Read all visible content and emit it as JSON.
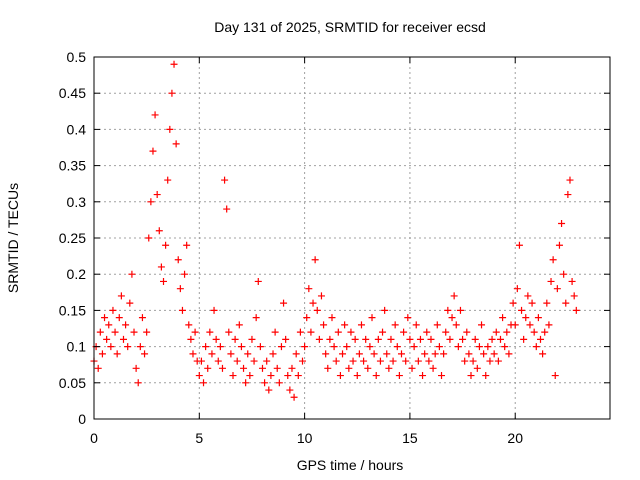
{
  "chart_data": {
    "type": "scatter",
    "title": "Day 131 of 2025, SRMTID for receiver ecsd",
    "xlabel": "GPS time / hours",
    "ylabel": "SRMTID / TECUs",
    "xlim": [
      0,
      24.5
    ],
    "ylim": [
      0,
      0.5
    ],
    "x_ticks": [
      0,
      5,
      10,
      15,
      20
    ],
    "x_tick_labels": [
      "0",
      "5",
      "10",
      "15",
      "20"
    ],
    "y_ticks": [
      0,
      0.05,
      0.1,
      0.15,
      0.2,
      0.25,
      0.3,
      0.35,
      0.4,
      0.45,
      0.5
    ],
    "y_tick_labels": [
      "0",
      "0.05",
      "0.1",
      "0.15",
      "0.2",
      "0.25",
      "0.3",
      "0.35",
      "0.4",
      "0.45",
      "0.5"
    ],
    "grid": true,
    "marker": "+",
    "color": "#ff0000",
    "series": [
      {
        "name": "SRMTID",
        "points": [
          [
            0.0,
            0.08
          ],
          [
            0.1,
            0.1
          ],
          [
            0.2,
            0.07
          ],
          [
            0.3,
            0.12
          ],
          [
            0.4,
            0.09
          ],
          [
            0.5,
            0.14
          ],
          [
            0.6,
            0.11
          ],
          [
            0.7,
            0.13
          ],
          [
            0.8,
            0.1
          ],
          [
            0.9,
            0.15
          ],
          [
            1.0,
            0.12
          ],
          [
            1.1,
            0.09
          ],
          [
            1.2,
            0.14
          ],
          [
            1.3,
            0.17
          ],
          [
            1.4,
            0.11
          ],
          [
            1.5,
            0.13
          ],
          [
            1.6,
            0.1
          ],
          [
            1.7,
            0.16
          ],
          [
            1.8,
            0.2
          ],
          [
            1.9,
            0.12
          ],
          [
            2.0,
            0.07
          ],
          [
            2.1,
            0.05
          ],
          [
            2.2,
            0.1
          ],
          [
            2.3,
            0.14
          ],
          [
            2.4,
            0.09
          ],
          [
            2.5,
            0.12
          ],
          [
            2.6,
            0.25
          ],
          [
            2.7,
            0.3
          ],
          [
            2.8,
            0.37
          ],
          [
            2.9,
            0.42
          ],
          [
            3.0,
            0.31
          ],
          [
            3.1,
            0.26
          ],
          [
            3.2,
            0.21
          ],
          [
            3.3,
            0.19
          ],
          [
            3.4,
            0.24
          ],
          [
            3.5,
            0.33
          ],
          [
            3.6,
            0.4
          ],
          [
            3.7,
            0.45
          ],
          [
            3.8,
            0.49
          ],
          [
            3.9,
            0.38
          ],
          [
            4.0,
            0.22
          ],
          [
            4.1,
            0.18
          ],
          [
            4.2,
            0.15
          ],
          [
            4.3,
            0.2
          ],
          [
            4.4,
            0.24
          ],
          [
            4.5,
            0.13
          ],
          [
            4.6,
            0.11
          ],
          [
            4.7,
            0.09
          ],
          [
            4.8,
            0.12
          ],
          [
            4.9,
            0.08
          ],
          [
            5.0,
            0.06
          ],
          [
            5.1,
            0.08
          ],
          [
            5.2,
            0.05
          ],
          [
            5.3,
            0.1
          ],
          [
            5.4,
            0.07
          ],
          [
            5.5,
            0.12
          ],
          [
            5.6,
            0.09
          ],
          [
            5.7,
            0.15
          ],
          [
            5.8,
            0.11
          ],
          [
            5.9,
            0.08
          ],
          [
            6.0,
            0.1
          ],
          [
            6.1,
            0.07
          ],
          [
            6.2,
            0.33
          ],
          [
            6.3,
            0.29
          ],
          [
            6.4,
            0.12
          ],
          [
            6.5,
            0.09
          ],
          [
            6.6,
            0.06
          ],
          [
            6.7,
            0.11
          ],
          [
            6.8,
            0.08
          ],
          [
            6.9,
            0.13
          ],
          [
            7.0,
            0.1
          ],
          [
            7.1,
            0.07
          ],
          [
            7.2,
            0.05
          ],
          [
            7.3,
            0.09
          ],
          [
            7.4,
            0.06
          ],
          [
            7.5,
            0.11
          ],
          [
            7.6,
            0.08
          ],
          [
            7.7,
            0.14
          ],
          [
            7.8,
            0.19
          ],
          [
            7.9,
            0.1
          ],
          [
            8.0,
            0.07
          ],
          [
            8.1,
            0.05
          ],
          [
            8.2,
            0.08
          ],
          [
            8.3,
            0.04
          ],
          [
            8.4,
            0.06
          ],
          [
            8.5,
            0.09
          ],
          [
            8.6,
            0.12
          ],
          [
            8.7,
            0.07
          ],
          [
            8.8,
            0.05
          ],
          [
            8.9,
            0.1
          ],
          [
            9.0,
            0.16
          ],
          [
            9.1,
            0.11
          ],
          [
            9.2,
            0.06
          ],
          [
            9.3,
            0.04
          ],
          [
            9.4,
            0.07
          ],
          [
            9.5,
            0.03
          ],
          [
            9.6,
            0.09
          ],
          [
            9.7,
            0.06
          ],
          [
            9.8,
            0.12
          ],
          [
            9.9,
            0.08
          ],
          [
            10.0,
            0.1
          ],
          [
            10.1,
            0.14
          ],
          [
            10.2,
            0.18
          ],
          [
            10.3,
            0.12
          ],
          [
            10.4,
            0.16
          ],
          [
            10.5,
            0.22
          ],
          [
            10.6,
            0.15
          ],
          [
            10.7,
            0.11
          ],
          [
            10.8,
            0.17
          ],
          [
            10.9,
            0.13
          ],
          [
            11.0,
            0.09
          ],
          [
            11.1,
            0.07
          ],
          [
            11.2,
            0.11
          ],
          [
            11.3,
            0.14
          ],
          [
            11.4,
            0.1
          ],
          [
            11.5,
            0.08
          ],
          [
            11.6,
            0.12
          ],
          [
            11.7,
            0.06
          ],
          [
            11.8,
            0.09
          ],
          [
            11.9,
            0.13
          ],
          [
            12.0,
            0.1
          ],
          [
            12.1,
            0.07
          ],
          [
            12.2,
            0.12
          ],
          [
            12.3,
            0.08
          ],
          [
            12.4,
            0.11
          ],
          [
            12.5,
            0.06
          ],
          [
            12.6,
            0.09
          ],
          [
            12.7,
            0.13
          ],
          [
            12.8,
            0.08
          ],
          [
            12.9,
            0.11
          ],
          [
            13.0,
            0.07
          ],
          [
            13.1,
            0.1
          ],
          [
            13.2,
            0.14
          ],
          [
            13.3,
            0.09
          ],
          [
            13.4,
            0.06
          ],
          [
            13.5,
            0.11
          ],
          [
            13.6,
            0.08
          ],
          [
            13.7,
            0.12
          ],
          [
            13.8,
            0.15
          ],
          [
            13.9,
            0.09
          ],
          [
            14.0,
            0.07
          ],
          [
            14.1,
            0.11
          ],
          [
            14.2,
            0.08
          ],
          [
            14.3,
            0.13
          ],
          [
            14.4,
            0.1
          ],
          [
            14.5,
            0.06
          ],
          [
            14.6,
            0.09
          ],
          [
            14.7,
            0.12
          ],
          [
            14.8,
            0.08
          ],
          [
            14.9,
            0.14
          ],
          [
            15.0,
            0.11
          ],
          [
            15.1,
            0.07
          ],
          [
            15.2,
            0.1
          ],
          [
            15.3,
            0.13
          ],
          [
            15.4,
            0.08
          ],
          [
            15.5,
            0.11
          ],
          [
            15.6,
            0.06
          ],
          [
            15.7,
            0.09
          ],
          [
            15.8,
            0.12
          ],
          [
            15.9,
            0.08
          ],
          [
            16.0,
            0.11
          ],
          [
            16.1,
            0.07
          ],
          [
            16.2,
            0.09
          ],
          [
            16.3,
            0.13
          ],
          [
            16.4,
            0.1
          ],
          [
            16.5,
            0.06
          ],
          [
            16.6,
            0.09
          ],
          [
            16.7,
            0.12
          ],
          [
            16.8,
            0.15
          ],
          [
            16.9,
            0.11
          ],
          [
            17.0,
            0.14
          ],
          [
            17.1,
            0.17
          ],
          [
            17.2,
            0.13
          ],
          [
            17.3,
            0.1
          ],
          [
            17.4,
            0.15
          ],
          [
            17.5,
            0.11
          ],
          [
            17.6,
            0.08
          ],
          [
            17.7,
            0.12
          ],
          [
            17.8,
            0.09
          ],
          [
            17.9,
            0.06
          ],
          [
            18.0,
            0.08
          ],
          [
            18.1,
            0.11
          ],
          [
            18.2,
            0.07
          ],
          [
            18.3,
            0.1
          ],
          [
            18.4,
            0.13
          ],
          [
            18.5,
            0.09
          ],
          [
            18.6,
            0.06
          ],
          [
            18.7,
            0.1
          ],
          [
            18.8,
            0.08
          ],
          [
            18.9,
            0.11
          ],
          [
            19.0,
            0.09
          ],
          [
            19.1,
            0.12
          ],
          [
            19.2,
            0.08
          ],
          [
            19.3,
            0.11
          ],
          [
            19.4,
            0.14
          ],
          [
            19.5,
            0.1
          ],
          [
            19.6,
            0.12
          ],
          [
            19.7,
            0.09
          ],
          [
            19.8,
            0.13
          ],
          [
            19.9,
            0.16
          ],
          [
            20.0,
            0.13
          ],
          [
            20.1,
            0.18
          ],
          [
            20.2,
            0.24
          ],
          [
            20.3,
            0.15
          ],
          [
            20.4,
            0.11
          ],
          [
            20.5,
            0.14
          ],
          [
            20.6,
            0.17
          ],
          [
            20.7,
            0.13
          ],
          [
            20.8,
            0.16
          ],
          [
            20.9,
            0.12
          ],
          [
            21.0,
            0.1
          ],
          [
            21.1,
            0.14
          ],
          [
            21.2,
            0.11
          ],
          [
            21.3,
            0.09
          ],
          [
            21.4,
            0.12
          ],
          [
            21.5,
            0.16
          ],
          [
            21.6,
            0.13
          ],
          [
            21.7,
            0.19
          ],
          [
            21.8,
            0.22
          ],
          [
            21.9,
            0.06
          ],
          [
            22.0,
            0.18
          ],
          [
            22.1,
            0.24
          ],
          [
            22.2,
            0.27
          ],
          [
            22.3,
            0.2
          ],
          [
            22.4,
            0.16
          ],
          [
            22.5,
            0.31
          ],
          [
            22.6,
            0.33
          ],
          [
            22.7,
            0.19
          ],
          [
            22.8,
            0.17
          ],
          [
            22.9,
            0.15
          ]
        ]
      }
    ]
  }
}
